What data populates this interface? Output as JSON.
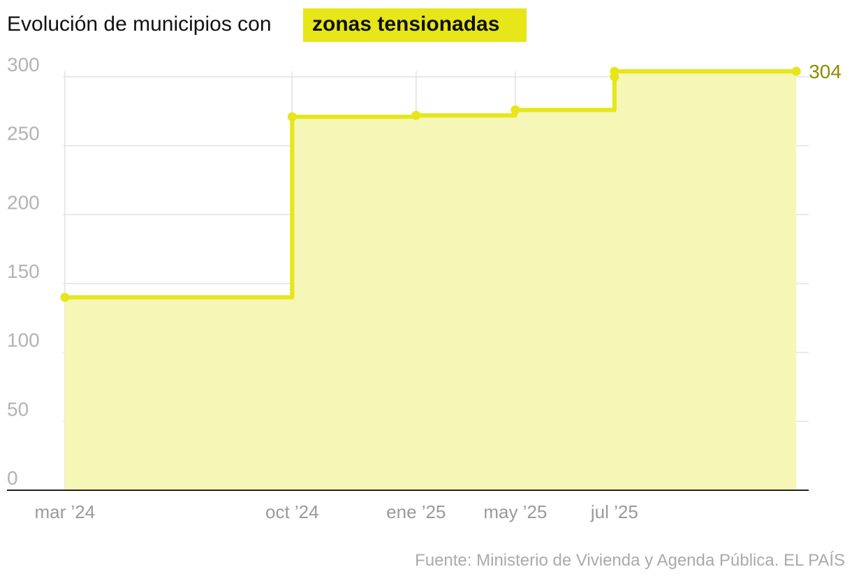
{
  "chart_data": {
    "type": "step",
    "title": "Evolución de municipios con",
    "title_highlight": "zonas tensionadas",
    "source": "Fuente: Ministerio de Vivienda y Agenda Pública. EL PAÍS",
    "x": [
      2024.17,
      2024.72,
      2025.02,
      2025.26,
      2025.5,
      2025.5,
      2025.94
    ],
    "series": [
      {
        "color": "#e6e619",
        "area_color": "#f6f6b6",
        "label_color": "#8c8c00",
        "values": [
          140,
          271,
          272,
          276,
          300,
          304,
          304
        ]
      }
    ],
    "xlim": [
      2024.03,
      2025.97
    ],
    "xticks": [
      {
        "value": 2024.17,
        "label": "mar ’24"
      },
      {
        "value": 2024.72,
        "label": "oct ’24"
      },
      {
        "value": 2025.02,
        "label": "ene ’25"
      },
      {
        "value": 2025.26,
        "label": "may ’25"
      },
      {
        "value": 2025.5,
        "label": "jul ’25"
      }
    ],
    "ylim": [
      0,
      300
    ],
    "yticks": [
      0,
      50,
      100,
      150,
      200,
      250,
      300
    ],
    "grid": true
  }
}
